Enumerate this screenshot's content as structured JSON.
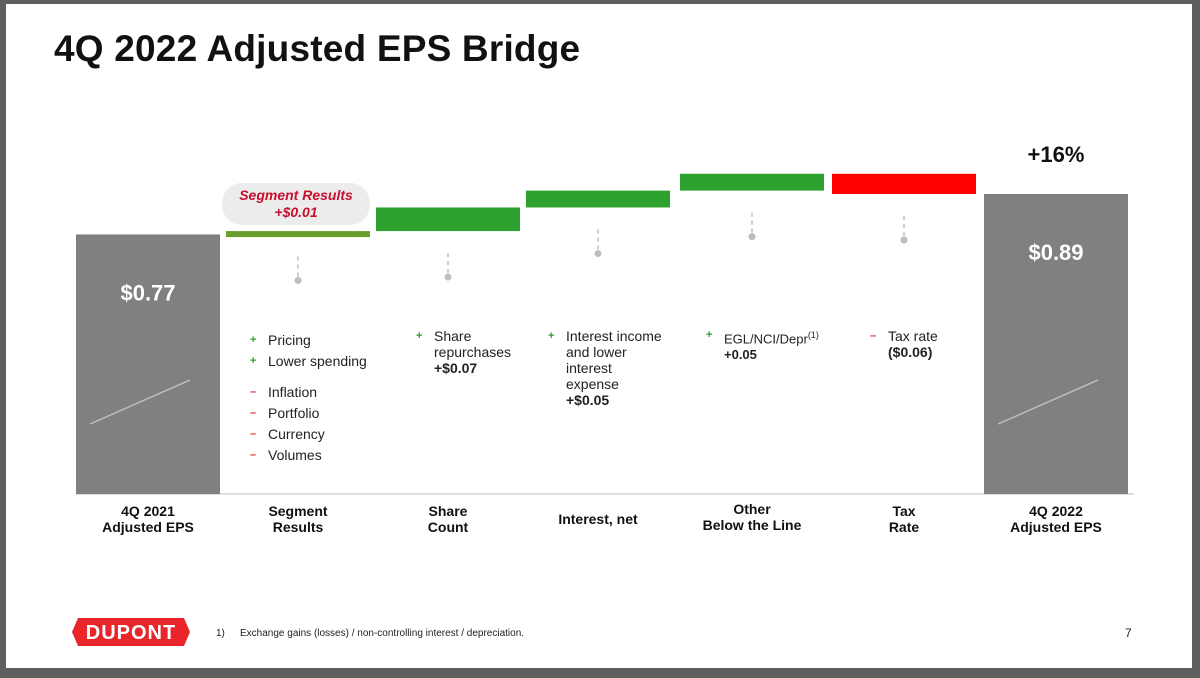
{
  "title": "4Q 2022 Adjusted EPS Bridge",
  "callout": {
    "line1": "Segment Results",
    "line2": "+$0.01"
  },
  "change_label": "+16%",
  "footnote": {
    "number": "1)",
    "text": "Exchange gains (losses) / non-controlling interest / depreciation."
  },
  "page_number": "7",
  "logo_text": "DUPONT",
  "colors": {
    "total": "#808080",
    "segment": "#6a9e2b",
    "positive": "#2ea22e",
    "negative": "#ff0000"
  },
  "chart_data": {
    "type": "waterfall",
    "title": "4Q 2022 Adjusted EPS Bridge",
    "unit": "$",
    "categories": [
      [
        "4Q 2021",
        "Adjusted EPS"
      ],
      [
        "Segment",
        "Results"
      ],
      [
        "Share",
        "Count"
      ],
      [
        "Interest, net"
      ],
      [
        "Other",
        "Below the Line"
      ],
      [
        "Tax",
        "Rate"
      ],
      [
        "4Q 2022",
        "Adjusted EPS"
      ]
    ],
    "steps": [
      {
        "kind": "total",
        "value": 0.77,
        "label": "$0.77"
      },
      {
        "kind": "segment",
        "value": 0.01
      },
      {
        "kind": "positive",
        "value": 0.07
      },
      {
        "kind": "positive",
        "value": 0.05
      },
      {
        "kind": "positive",
        "value": 0.05
      },
      {
        "kind": "negative",
        "value": -0.06
      },
      {
        "kind": "total",
        "value": 0.89,
        "label": "$0.89"
      }
    ]
  },
  "drivers": {
    "segment": [
      {
        "sign": "+",
        "text": "Pricing"
      },
      {
        "sign": "+",
        "text": "Lower spending"
      },
      {
        "sign": "–",
        "text": "Inflation"
      },
      {
        "sign": "–",
        "text": "Portfolio"
      },
      {
        "sign": "–",
        "text": "Currency"
      },
      {
        "sign": "–",
        "text": "Volumes"
      }
    ],
    "share": {
      "sign": "+",
      "lines": [
        "Share",
        "repurchases"
      ],
      "value": "+$0.07"
    },
    "interest": {
      "sign": "+",
      "lines": [
        "Interest income",
        "and lower",
        "interest",
        "expense"
      ],
      "value": "+$0.05"
    },
    "other": {
      "sign": "+",
      "text": "EGL/NCI/Depr",
      "sup": "(1)",
      "value": "+0.05"
    },
    "tax": {
      "sign": "–",
      "text": "Tax rate",
      "value": "($0.06)"
    }
  }
}
